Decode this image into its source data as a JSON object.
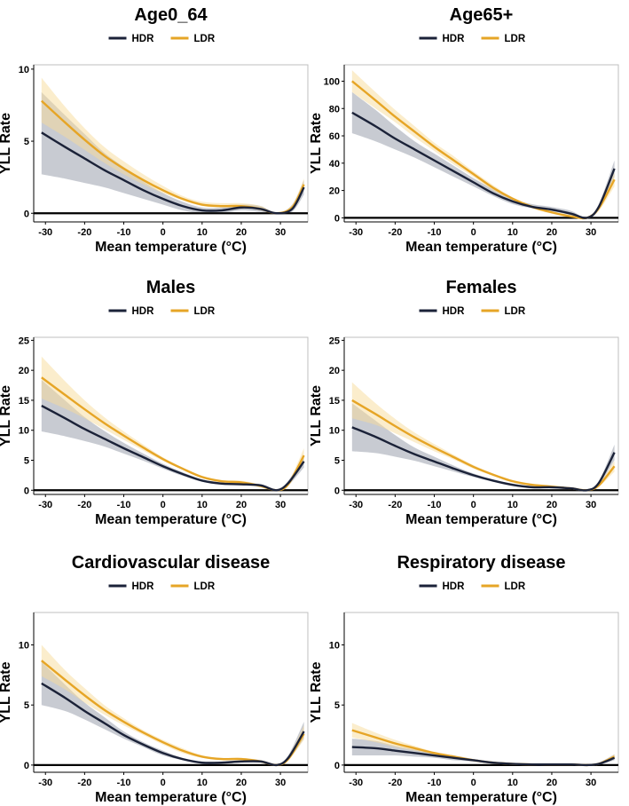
{
  "chart_data": [
    {
      "type": "line",
      "title": "Age0_64",
      "xlabel": "Mean temperature (°C)",
      "ylabel": "YLL Rate",
      "xlim": [
        -33,
        37
      ],
      "ylim": [
        -0.6,
        10.3
      ],
      "xticks": [
        -30,
        -20,
        -10,
        0,
        10,
        20,
        30
      ],
      "yticks": [
        0,
        5,
        10
      ],
      "legend": [
        "HDR",
        "LDR"
      ],
      "series": [
        {
          "name": "HDR",
          "color": "#1b2238",
          "x": [
            -31,
            -25,
            -20,
            -15,
            -10,
            -5,
            0,
            5,
            10,
            15,
            20,
            25,
            29,
            33,
            36
          ],
          "y": [
            5.6,
            4.6,
            3.8,
            3.0,
            2.3,
            1.6,
            1.0,
            0.5,
            0.2,
            0.2,
            0.4,
            0.3,
            0.0,
            0.3,
            1.8
          ],
          "lower": [
            2.7,
            2.4,
            2.1,
            1.8,
            1.4,
            1.0,
            0.6,
            0.2,
            0.0,
            0.0,
            0.2,
            0.1,
            0.0,
            0.1,
            1.3
          ],
          "upper": [
            8.4,
            6.8,
            5.5,
            4.2,
            3.2,
            2.2,
            1.4,
            0.8,
            0.4,
            0.4,
            0.6,
            0.5,
            0.0,
            0.6,
            2.3
          ]
        },
        {
          "name": "LDR",
          "color": "#e6a526",
          "x": [
            -31,
            -25,
            -20,
            -15,
            -10,
            -5,
            0,
            5,
            10,
            15,
            20,
            25,
            29,
            33,
            36
          ],
          "y": [
            7.8,
            6.3,
            5.1,
            4.0,
            3.1,
            2.3,
            1.6,
            1.0,
            0.6,
            0.5,
            0.5,
            0.3,
            0.0,
            0.4,
            2.0
          ],
          "lower": [
            6.3,
            5.3,
            4.4,
            3.5,
            2.7,
            2.0,
            1.4,
            0.9,
            0.5,
            0.4,
            0.4,
            0.2,
            0.0,
            0.3,
            1.7
          ],
          "upper": [
            9.4,
            7.4,
            5.9,
            4.6,
            3.6,
            2.7,
            1.9,
            1.2,
            0.8,
            0.7,
            0.7,
            0.5,
            0.0,
            0.6,
            2.4
          ]
        }
      ]
    },
    {
      "type": "line",
      "title": "Age65+",
      "xlabel": "Mean temperature (°C)",
      "ylabel": "YLL Rate",
      "xlim": [
        -33,
        37
      ],
      "ylim": [
        -3,
        112
      ],
      "xticks": [
        -30,
        -20,
        -10,
        0,
        10,
        20,
        30
      ],
      "yticks": [
        0,
        20,
        40,
        60,
        80,
        100
      ],
      "legend": [
        "HDR",
        "LDR"
      ],
      "series": [
        {
          "name": "HDR",
          "color": "#1b2238",
          "x": [
            -31,
            -25,
            -20,
            -15,
            -10,
            -5,
            0,
            5,
            10,
            15,
            20,
            25,
            29,
            32,
            36
          ],
          "y": [
            77,
            67,
            58,
            50,
            42,
            34,
            26,
            18,
            12,
            8,
            6,
            3,
            0,
            8,
            36
          ],
          "lower": [
            62,
            56,
            50,
            44,
            37,
            30,
            23,
            16,
            10,
            7,
            5,
            2,
            0,
            6,
            30
          ],
          "upper": [
            92,
            79,
            67,
            56,
            47,
            38,
            29,
            21,
            14,
            10,
            8,
            5,
            0,
            10,
            42
          ]
        },
        {
          "name": "LDR",
          "color": "#e6a526",
          "x": [
            -31,
            -25,
            -20,
            -15,
            -10,
            -5,
            0,
            5,
            10,
            15,
            20,
            25,
            29,
            32,
            36
          ],
          "y": [
            100,
            86,
            74,
            63,
            52,
            42,
            32,
            22,
            14,
            8,
            4,
            1,
            0,
            7,
            28
          ],
          "lower": [
            92,
            80,
            70,
            59,
            49,
            39,
            30,
            20,
            13,
            7,
            3,
            0,
            0,
            5,
            23
          ],
          "upper": [
            108,
            92,
            79,
            67,
            55,
            45,
            34,
            24,
            15,
            9,
            5,
            2,
            0,
            9,
            33
          ]
        }
      ]
    },
    {
      "type": "line",
      "title": "Males",
      "xlabel": "Mean temperature (°C)",
      "ylabel": "YLL Rate",
      "xlim": [
        -33,
        37
      ],
      "ylim": [
        -0.7,
        25.5
      ],
      "xticks": [
        -30,
        -20,
        -10,
        0,
        10,
        20,
        30
      ],
      "yticks": [
        0,
        5,
        10,
        15,
        20,
        25
      ],
      "legend": [
        "HDR",
        "LDR"
      ],
      "series": [
        {
          "name": "HDR",
          "color": "#1b2238",
          "x": [
            -31,
            -25,
            -20,
            -15,
            -10,
            -5,
            0,
            5,
            10,
            15,
            20,
            25,
            29,
            32,
            36
          ],
          "y": [
            14.1,
            12.0,
            10.2,
            8.6,
            7.0,
            5.5,
            4.0,
            2.7,
            1.6,
            1.1,
            1.0,
            0.8,
            0.0,
            1.2,
            4.8
          ],
          "lower": [
            9.8,
            9.0,
            8.2,
            7.3,
            6.1,
            4.9,
            3.6,
            2.4,
            1.4,
            0.9,
            0.8,
            0.6,
            0.0,
            0.8,
            3.8
          ],
          "upper": [
            18.4,
            15.0,
            12.2,
            9.9,
            7.9,
            6.1,
            4.4,
            3.0,
            1.8,
            1.3,
            1.2,
            1.0,
            0.0,
            1.6,
            5.8
          ]
        },
        {
          "name": "LDR",
          "color": "#e6a526",
          "x": [
            -31,
            -25,
            -20,
            -15,
            -10,
            -5,
            0,
            5,
            10,
            15,
            20,
            25,
            29,
            32,
            36
          ],
          "y": [
            18.8,
            15.9,
            13.5,
            11.2,
            9.1,
            7.1,
            5.2,
            3.6,
            2.2,
            1.5,
            1.3,
            0.7,
            0.0,
            1.0,
            5.8
          ],
          "lower": [
            15.3,
            13.6,
            12.0,
            10.2,
            8.4,
            6.6,
            4.9,
            3.4,
            2.0,
            1.3,
            1.0,
            0.5,
            0.0,
            0.8,
            4.6
          ],
          "upper": [
            22.3,
            18.2,
            15.0,
            12.2,
            9.8,
            7.6,
            5.5,
            3.8,
            2.4,
            1.7,
            1.6,
            0.9,
            0.0,
            1.3,
            7.0
          ]
        }
      ]
    },
    {
      "type": "line",
      "title": "Females",
      "xlabel": "Mean temperature (°C)",
      "ylabel": "YLL Rate",
      "xlim": [
        -33,
        37
      ],
      "ylim": [
        -0.7,
        25.5
      ],
      "xticks": [
        -30,
        -20,
        -10,
        0,
        10,
        20,
        30
      ],
      "yticks": [
        0,
        5,
        10,
        15,
        20,
        25
      ],
      "legend": [
        "HDR",
        "LDR"
      ],
      "series": [
        {
          "name": "HDR",
          "color": "#1b2238",
          "x": [
            -31,
            -25,
            -20,
            -15,
            -10,
            -5,
            0,
            5,
            10,
            15,
            20,
            25,
            29,
            32,
            36
          ],
          "y": [
            10.5,
            8.9,
            7.4,
            6.0,
            4.8,
            3.6,
            2.5,
            1.6,
            0.9,
            0.5,
            0.5,
            0.3,
            0.0,
            1.2,
            6.3
          ],
          "lower": [
            6.5,
            6.2,
            5.6,
            4.9,
            4.0,
            3.1,
            2.2,
            1.4,
            0.7,
            0.4,
            0.3,
            0.2,
            0.0,
            0.9,
            5.0
          ],
          "upper": [
            14.5,
            11.6,
            9.2,
            7.1,
            5.6,
            4.1,
            2.8,
            1.8,
            1.1,
            0.7,
            0.7,
            0.5,
            0.0,
            1.5,
            7.6
          ]
        },
        {
          "name": "LDR",
          "color": "#e6a526",
          "x": [
            -31,
            -25,
            -20,
            -15,
            -10,
            -5,
            0,
            5,
            10,
            15,
            20,
            25,
            29,
            32,
            36
          ],
          "y": [
            15.0,
            12.7,
            10.7,
            8.8,
            7.1,
            5.5,
            3.9,
            2.6,
            1.5,
            0.9,
            0.6,
            0.3,
            0.0,
            0.8,
            4.0
          ],
          "lower": [
            12.0,
            10.9,
            9.5,
            8.0,
            6.5,
            5.1,
            3.6,
            2.4,
            1.3,
            0.7,
            0.4,
            0.2,
            0.0,
            0.6,
            3.1
          ],
          "upper": [
            18.0,
            14.5,
            11.9,
            9.6,
            7.7,
            5.9,
            4.2,
            2.8,
            1.7,
            1.1,
            0.8,
            0.4,
            0.0,
            1.0,
            4.9
          ]
        }
      ]
    },
    {
      "type": "line",
      "title": "Cardiovascular disease",
      "xlabel": "Mean temperature (°C)",
      "ylabel": "YLL Rate",
      "xlim": [
        -33,
        37
      ],
      "ylim": [
        -0.6,
        12.7
      ],
      "xticks": [
        -30,
        -20,
        -10,
        0,
        10,
        20,
        30
      ],
      "yticks": [
        0,
        5,
        10
      ],
      "legend": [
        "HDR",
        "LDR"
      ],
      "series": [
        {
          "name": "HDR",
          "color": "#1b2238",
          "x": [
            -31,
            -25,
            -20,
            -15,
            -10,
            -5,
            0,
            5,
            10,
            15,
            20,
            25,
            29,
            32,
            36
          ],
          "y": [
            6.8,
            5.6,
            4.5,
            3.5,
            2.5,
            1.7,
            1.0,
            0.5,
            0.2,
            0.2,
            0.3,
            0.3,
            0.0,
            0.6,
            2.8
          ],
          "lower": [
            5.0,
            4.5,
            3.8,
            3.0,
            2.2,
            1.5,
            0.8,
            0.4,
            0.1,
            0.1,
            0.2,
            0.2,
            0.0,
            0.4,
            2.2
          ],
          "upper": [
            8.6,
            6.7,
            5.2,
            4.0,
            2.8,
            1.9,
            1.2,
            0.6,
            0.3,
            0.3,
            0.4,
            0.4,
            0.0,
            0.8,
            3.6
          ]
        },
        {
          "name": "LDR",
          "color": "#e6a526",
          "x": [
            -31,
            -25,
            -20,
            -15,
            -10,
            -5,
            0,
            5,
            10,
            15,
            20,
            25,
            29,
            32,
            36
          ],
          "y": [
            8.7,
            7.1,
            5.8,
            4.6,
            3.6,
            2.7,
            1.9,
            1.2,
            0.7,
            0.5,
            0.5,
            0.3,
            0.0,
            0.5,
            2.6
          ],
          "lower": [
            7.4,
            6.3,
            5.2,
            4.2,
            3.3,
            2.5,
            1.7,
            1.0,
            0.6,
            0.4,
            0.4,
            0.2,
            0.0,
            0.4,
            2.1
          ],
          "upper": [
            10.0,
            7.9,
            6.4,
            5.0,
            3.9,
            2.9,
            2.1,
            1.4,
            0.8,
            0.6,
            0.6,
            0.4,
            0.0,
            0.7,
            3.3
          ]
        }
      ]
    },
    {
      "type": "line",
      "title": "Respiratory disease",
      "xlabel": "Mean temperature (°C)",
      "ylabel": "YLL Rate",
      "xlim": [
        -33,
        37
      ],
      "ylim": [
        -0.6,
        12.7
      ],
      "xticks": [
        -30,
        -20,
        -10,
        0,
        10,
        20,
        30
      ],
      "yticks": [
        0,
        5,
        10
      ],
      "legend": [
        "HDR",
        "LDR"
      ],
      "series": [
        {
          "name": "HDR",
          "color": "#1b2238",
          "x": [
            -31,
            -25,
            -20,
            -15,
            -10,
            -5,
            0,
            5,
            10,
            15,
            20,
            25,
            29,
            32,
            36
          ],
          "y": [
            1.5,
            1.4,
            1.2,
            1.0,
            0.8,
            0.6,
            0.4,
            0.2,
            0.1,
            0.05,
            0.05,
            0.05,
            0.0,
            0.1,
            0.6
          ],
          "lower": [
            0.8,
            0.8,
            0.8,
            0.7,
            0.6,
            0.4,
            0.3,
            0.1,
            0.05,
            0.0,
            0.0,
            0.0,
            0.0,
            0.05,
            0.4
          ],
          "upper": [
            2.2,
            2.0,
            1.6,
            1.3,
            1.0,
            0.8,
            0.5,
            0.3,
            0.15,
            0.1,
            0.1,
            0.1,
            0.0,
            0.2,
            0.9
          ]
        },
        {
          "name": "LDR",
          "color": "#e6a526",
          "x": [
            -31,
            -25,
            -20,
            -15,
            -10,
            -5,
            0,
            5,
            10,
            15,
            20,
            25,
            29,
            32,
            36
          ],
          "y": [
            2.9,
            2.3,
            1.8,
            1.4,
            1.0,
            0.7,
            0.4,
            0.2,
            0.1,
            0.05,
            0.05,
            0.05,
            0.0,
            0.1,
            0.7
          ],
          "lower": [
            2.3,
            1.9,
            1.5,
            1.2,
            0.9,
            0.6,
            0.35,
            0.15,
            0.05,
            0.0,
            0.0,
            0.0,
            0.0,
            0.05,
            0.5
          ],
          "upper": [
            3.5,
            2.7,
            2.1,
            1.6,
            1.1,
            0.8,
            0.5,
            0.25,
            0.15,
            0.1,
            0.1,
            0.1,
            0.0,
            0.15,
            0.9
          ]
        }
      ]
    }
  ]
}
